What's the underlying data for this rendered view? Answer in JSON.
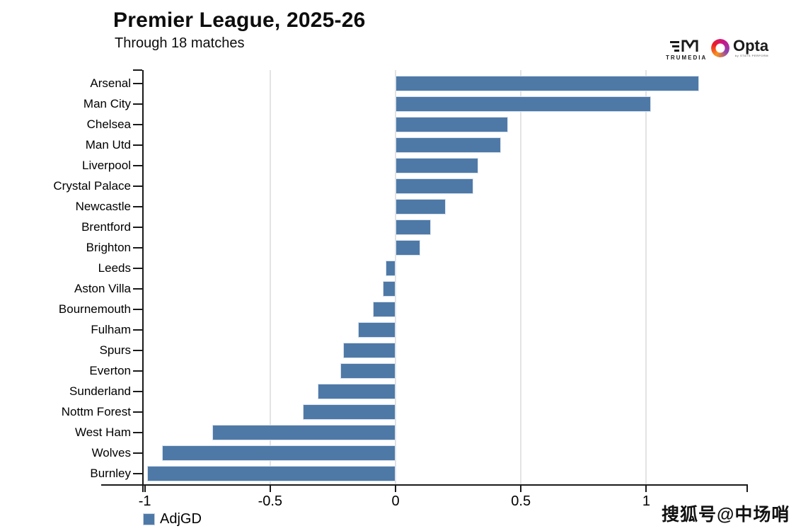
{
  "header": {
    "title": "Premier League, 2025-26",
    "subtitle": "Through 18 matches"
  },
  "branding": {
    "trumedia_label": "TRUMEDIA",
    "opta_label": "Opta",
    "opta_sub": "by STATS PERFORM"
  },
  "watermark": "搜狐号@中场哨",
  "legend": {
    "adjgd_label": "AdjGD",
    "adjgd_color": "#4e79a7"
  },
  "chart_data": {
    "type": "bar",
    "orientation": "horizontal",
    "title": "Premier League, 2025-26",
    "subtitle": "Through 18 matches",
    "categories": [
      "Arsenal",
      "Man City",
      "Chelsea",
      "Man Utd",
      "Liverpool",
      "Crystal Palace",
      "Newcastle",
      "Brentford",
      "Brighton",
      "Leeds",
      "Aston Villa",
      "Bournemouth",
      "Fulham",
      "Spurs",
      "Everton",
      "Sunderland",
      "Nottm Forest",
      "West Ham",
      "Wolves",
      "Burnley"
    ],
    "values": [
      1.21,
      1.02,
      0.45,
      0.42,
      0.33,
      0.31,
      0.2,
      0.14,
      0.1,
      -0.04,
      -0.05,
      -0.09,
      -0.15,
      -0.21,
      -0.22,
      -0.31,
      -0.37,
      -0.73,
      -0.93,
      -0.99
    ],
    "series_name": "AdjGD",
    "xlabel": "",
    "ylabel": "",
    "xlim": [
      -1.01,
      1.41
    ],
    "x_ticks": [
      -1,
      -0.5,
      0,
      0.5,
      1
    ],
    "x_tick_labels": [
      "-1",
      "-0.5",
      "0",
      "0.5",
      "1"
    ],
    "grid": true,
    "legend_position": "bottom-left",
    "bar_color": "#4e79a7"
  }
}
